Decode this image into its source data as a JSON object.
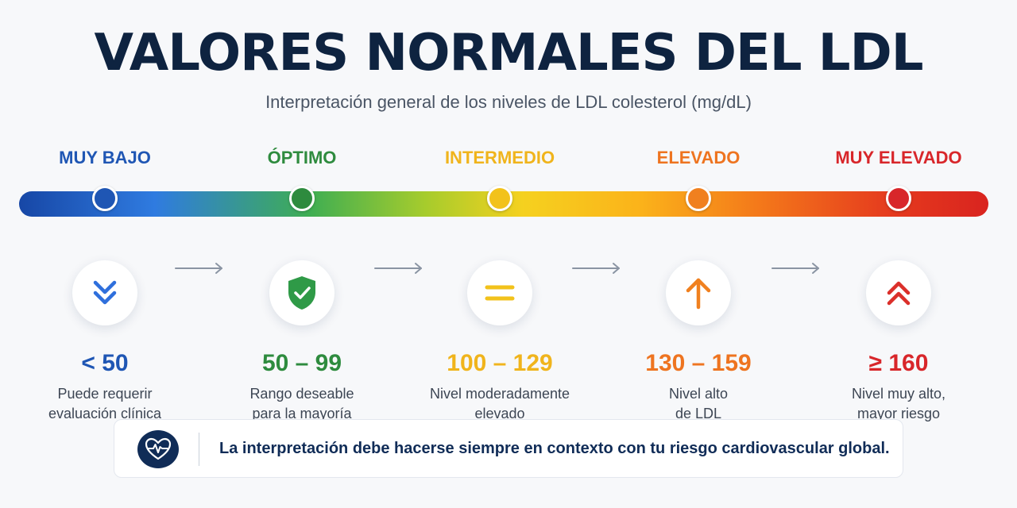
{
  "header": {
    "title": "VALORES NORMALES DEL LDL",
    "subtitle": "Interpretación general de los niveles de LDL colesterol (mg/dL)"
  },
  "levels": [
    {
      "label": "MUY BAJO",
      "color": "#1f56b4",
      "icon": "double-chevron-down-icon",
      "range": "< 50",
      "desc_line1": "Puede requerir",
      "desc_line2": "evaluación clínica"
    },
    {
      "label": "ÓPTIMO",
      "color": "#2e8b3e",
      "icon": "shield-check-icon",
      "range": "50 – 99",
      "desc_line1": "Rango deseable",
      "desc_line2": "para la mayoría"
    },
    {
      "label": "INTERMEDIO",
      "color": "#f0b41c",
      "icon": "equals-icon",
      "range": "100 – 129",
      "desc_line1": "Nivel moderadamente",
      "desc_line2": "elevado"
    },
    {
      "label": "ELEVADO",
      "color": "#ee7420",
      "icon": "arrow-up-icon",
      "range": "130 – 159",
      "desc_line1": "Nivel alto",
      "desc_line2": "de LDL"
    },
    {
      "label": "MUY ELEVADO",
      "color": "#d8262a",
      "icon": "double-chevron-up-icon",
      "range": "≥ 160",
      "desc_line1": "Nivel muy alto,",
      "desc_line2": "mayor riesgo"
    }
  ],
  "note": {
    "icon": "heart-pulse-icon",
    "text": "La interpretación debe hacerse siempre en contexto con tu riesgo cardiovascular global."
  }
}
